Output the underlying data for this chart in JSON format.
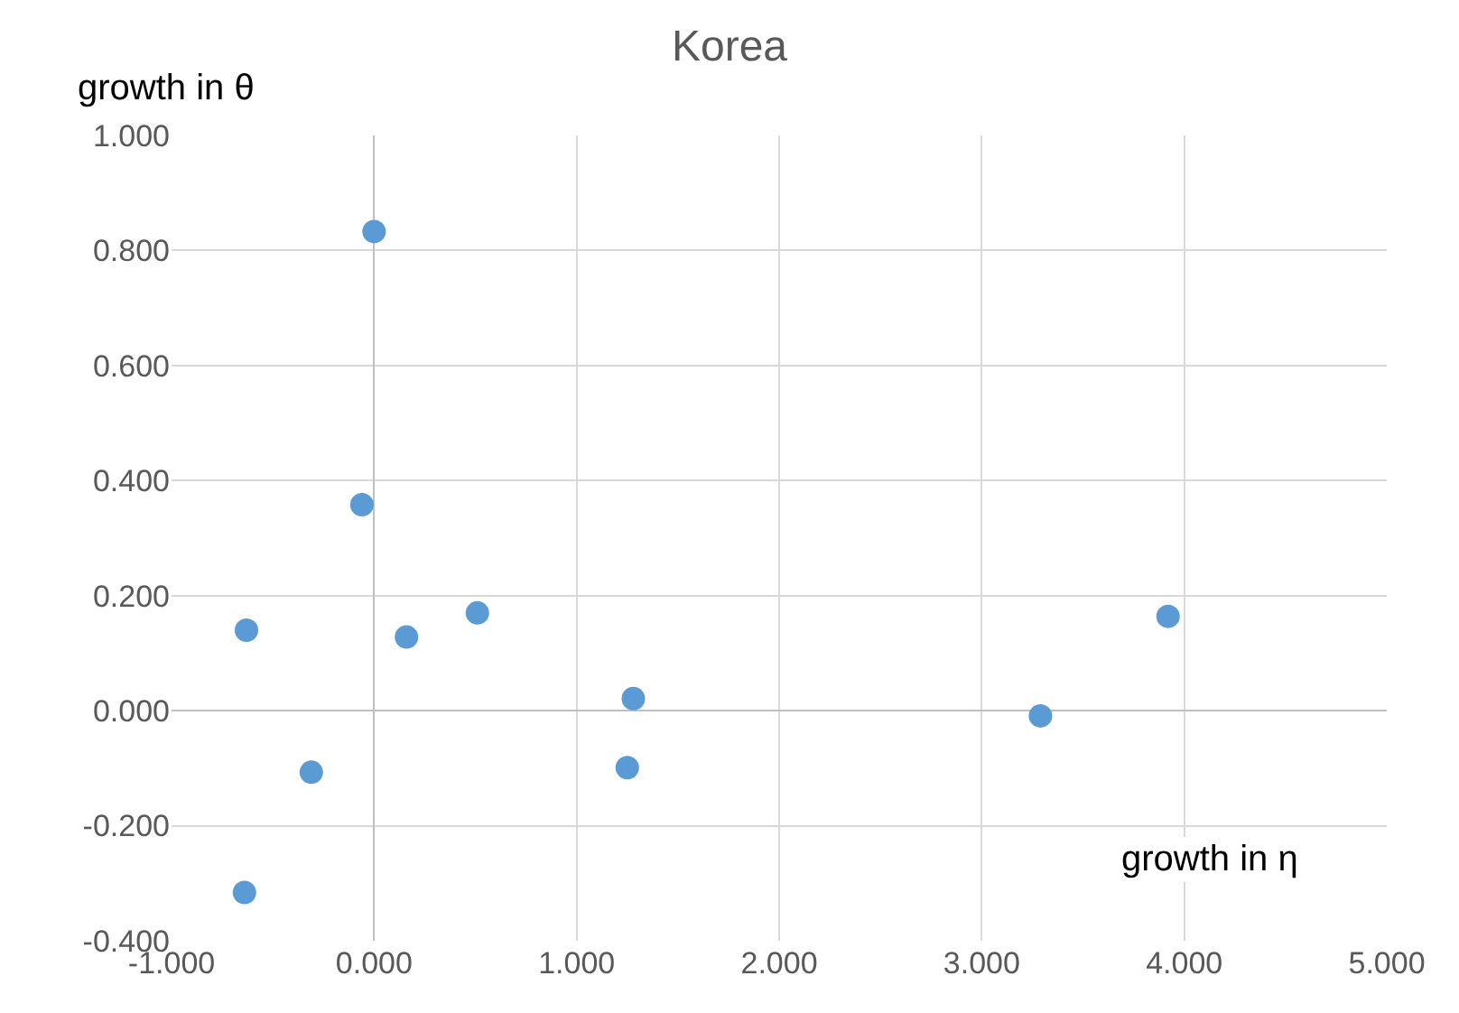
{
  "chart_data": {
    "type": "scatter",
    "title": "Korea",
    "xlabel": "growth in η",
    "ylabel": "growth in θ",
    "x": [
      0.0,
      -0.06,
      -0.63,
      0.16,
      0.51,
      1.28,
      1.25,
      -0.31,
      -0.64,
      3.29,
      3.92
    ],
    "series": [
      {
        "color": "#5b9bd5",
        "values": [
          0.833,
          0.358,
          0.14,
          0.128,
          0.17,
          0.021,
          -0.099,
          -0.107,
          -0.316,
          -0.009,
          0.164
        ]
      }
    ],
    "xlim": [
      -1,
      5
    ],
    "ylim": [
      -0.4,
      1.0
    ],
    "xticks": [
      {
        "value": -1,
        "label": "-1.000"
      },
      {
        "value": 0,
        "label": "0.000"
      },
      {
        "value": 1,
        "label": "1.000"
      },
      {
        "value": 2,
        "label": "2.000"
      },
      {
        "value": 3,
        "label": "3.000"
      },
      {
        "value": 4,
        "label": "4.000"
      },
      {
        "value": 5,
        "label": "5.000"
      }
    ],
    "yticks": [
      {
        "value": -0.4,
        "label": "-0.400"
      },
      {
        "value": -0.2,
        "label": "-0.200"
      },
      {
        "value": 0,
        "label": "0.000"
      },
      {
        "value": 0.2,
        "label": "0.200"
      },
      {
        "value": 0.4,
        "label": "0.400"
      },
      {
        "value": 0.6,
        "label": "0.600"
      },
      {
        "value": 0.8,
        "label": "0.800"
      },
      {
        "value": 1.0,
        "label": "1.000"
      }
    ],
    "grid": true,
    "marker": "circle"
  }
}
